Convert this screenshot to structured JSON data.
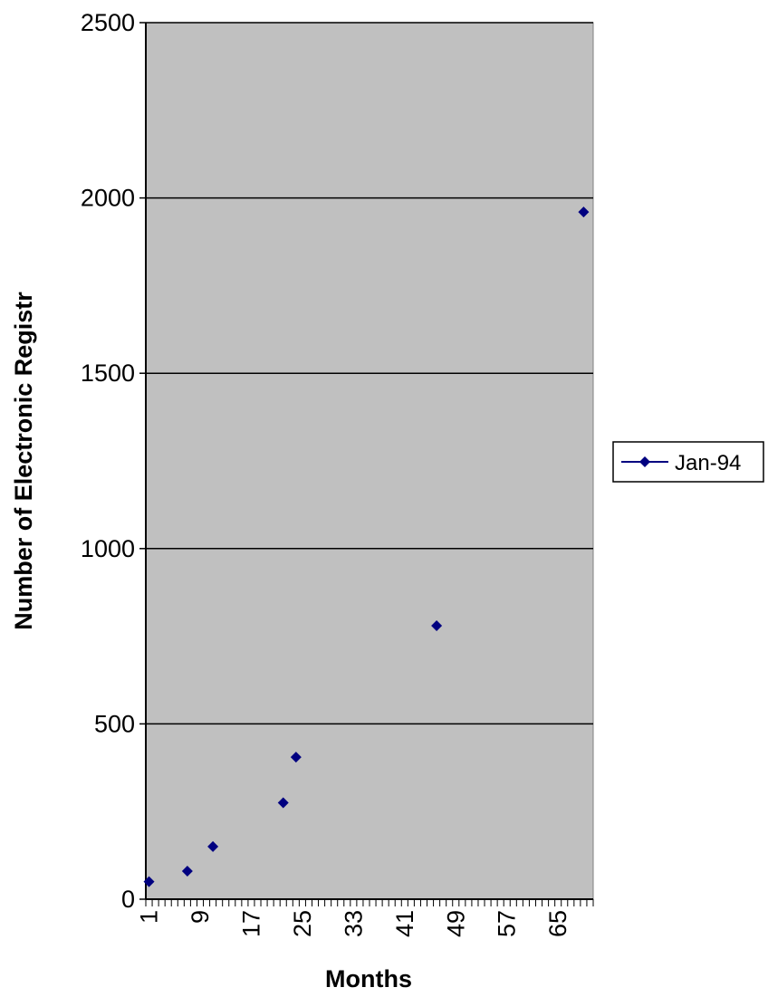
{
  "chart_data": {
    "type": "scatter",
    "title": "",
    "xlabel": "Months",
    "ylabel": "Number of Electronic Registr",
    "ylim": [
      0,
      2500
    ],
    "yticks": [
      "0",
      "500",
      "1000",
      "1500",
      "2000",
      "2500"
    ],
    "xlim": [
      1,
      70
    ],
    "xticks": [
      "1",
      "9",
      "17",
      "25",
      "33",
      "41",
      "49",
      "57",
      "65"
    ],
    "grid": true,
    "legend_position": "right",
    "plot_background": "#c0c0c0",
    "series": [
      {
        "name": "Jan-94",
        "color": "#000080",
        "marker": "diamond",
        "points": [
          {
            "x": 1,
            "y": 50
          },
          {
            "x": 7,
            "y": 80
          },
          {
            "x": 11,
            "y": 150
          },
          {
            "x": 22,
            "y": 275
          },
          {
            "x": 24,
            "y": 405
          },
          {
            "x": 46,
            "y": 780
          },
          {
            "x": 69,
            "y": 1960
          }
        ]
      }
    ]
  }
}
